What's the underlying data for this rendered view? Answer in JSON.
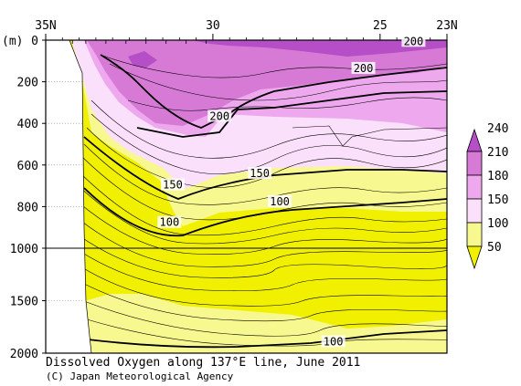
{
  "chart_data": {
    "type": "contour",
    "title": "Dissolved Oxygen along 137°E line, June 2011",
    "credit": "(C) Japan Meteorological Agency",
    "y_unit_label": "(m)",
    "x_axis": {
      "range": [
        35,
        23
      ],
      "ticks": [
        {
          "value": 35,
          "label": "35N"
        },
        {
          "value": 30,
          "label": "30"
        },
        {
          "value": 25,
          "label": "25"
        },
        {
          "value": 23,
          "label": "23N"
        }
      ],
      "minor_ticks": [
        34.5,
        34,
        33.5,
        33,
        32.5,
        32,
        31.5,
        31,
        30.5,
        29.5,
        29,
        28.5,
        28,
        27.5,
        27,
        26.5,
        26,
        25.5,
        24.5,
        24,
        23.5
      ]
    },
    "y_axis": {
      "range": [
        0,
        2000
      ],
      "break_at": 1000,
      "ticks": [
        0,
        200,
        400,
        600,
        800,
        1000,
        1500,
        2000
      ]
    },
    "colorbar": {
      "levels": [
        50,
        100,
        150,
        180,
        210,
        240
      ],
      "colors": [
        "#f0f000",
        "#f8f890",
        "#fbe0fb",
        "#eea8ee",
        "#d67ad6",
        "#b64ec8"
      ]
    },
    "contour_labels": [
      {
        "text": "200",
        "lat": 24.0,
        "depth": 10
      },
      {
        "text": "200",
        "lat": 25.5,
        "depth": 140
      },
      {
        "text": "200",
        "lat": 29.8,
        "depth": 370
      },
      {
        "text": "150",
        "lat": 28.6,
        "depth": 645
      },
      {
        "text": "150",
        "lat": 31.2,
        "depth": 700
      },
      {
        "text": "100",
        "lat": 28.0,
        "depth": 780
      },
      {
        "text": "100",
        "lat": 31.3,
        "depth": 880
      },
      {
        "text": "100",
        "lat": 26.4,
        "depth": 1900
      }
    ]
  }
}
